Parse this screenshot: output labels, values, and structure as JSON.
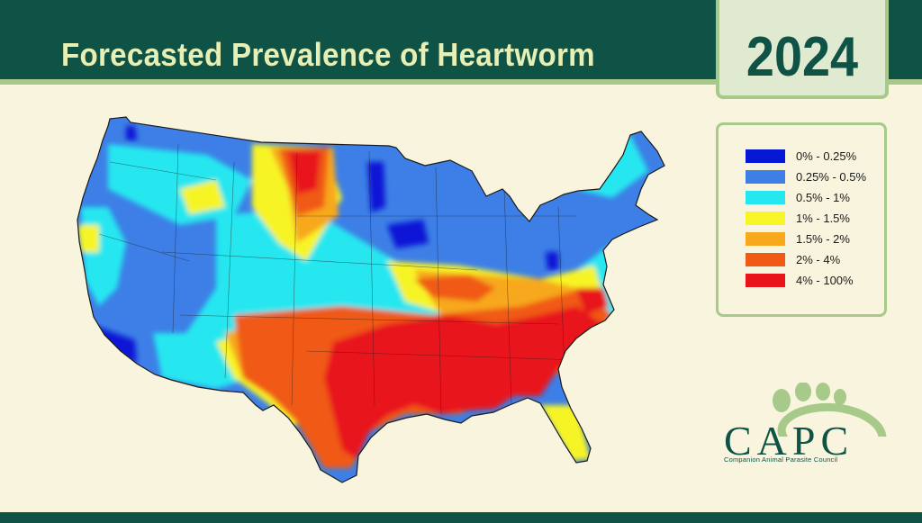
{
  "header": {
    "title": "Forecasted Prevalence of Heartworm",
    "year": "2024"
  },
  "legend": {
    "items": [
      {
        "label": "0% - 0.25%",
        "color": "#0717d6"
      },
      {
        "label": "0.25% - 0.5%",
        "color": "#3d7fe6"
      },
      {
        "label": "0.5% - 1%",
        "color": "#25e7f0"
      },
      {
        "label": "1% - 1.5%",
        "color": "#f7f428"
      },
      {
        "label": "1.5% - 2%",
        "color": "#f7a81c"
      },
      {
        "label": "2% - 4%",
        "color": "#f05a14"
      },
      {
        "label": "4% - 100%",
        "color": "#e8141a"
      }
    ]
  },
  "logo": {
    "name": "CAPC",
    "subtitle": "Companion Animal Parasite Council"
  },
  "colors": {
    "header_bg": "#0f5346",
    "accent_light": "#a7c98a",
    "background": "#f8f4de"
  }
}
